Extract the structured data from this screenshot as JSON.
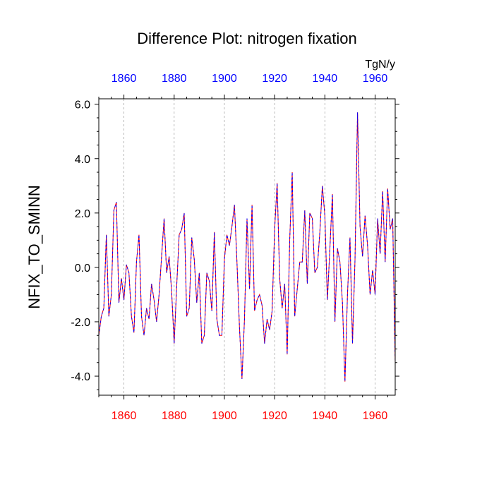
{
  "chart_data": {
    "type": "line",
    "title": "Difference Plot: nitrogen fixation",
    "units_label": "TgN/y",
    "ylabel": "NFIX_TO_SMINN",
    "xlabel": "",
    "xlim": [
      1850,
      1968
    ],
    "ylim": [
      -4.7,
      6.2
    ],
    "grid": "vertical dashed at x ticks",
    "y_ticks": [
      "6.0",
      "4.0",
      "2.0",
      "0.0",
      "-2.0",
      "-4.0"
    ],
    "y_tick_values": [
      6,
      4,
      2,
      0,
      -2,
      -4
    ],
    "x_ticks_top": [
      "1860",
      "1880",
      "1900",
      "1920",
      "1940",
      "1960"
    ],
    "x_ticks_bottom": [
      "1860",
      "1880",
      "1900",
      "1920",
      "1940",
      "1960"
    ],
    "x_tick_values": [
      1860,
      1880,
      1900,
      1920,
      1940,
      1960
    ],
    "colors": {
      "top_ticks": "#0000ff",
      "bottom_ticks": "#ff0000",
      "line_red": "#ff0000",
      "line_blue": "#0000ff",
      "grid": "#aaaaaa"
    },
    "series": [
      {
        "x": [
          1850,
          1851,
          1852,
          1853,
          1854,
          1855,
          1856,
          1857,
          1858,
          1859,
          1860,
          1861,
          1862,
          1863,
          1864,
          1865,
          1866,
          1867,
          1868,
          1869,
          1870,
          1871,
          1872,
          1873,
          1874,
          1875,
          1876,
          1877,
          1878,
          1879,
          1880,
          1881,
          1882,
          1883,
          1884,
          1885,
          1886,
          1887,
          1888,
          1889,
          1890,
          1891,
          1892,
          1893,
          1894,
          1895,
          1896,
          1897,
          1898,
          1899,
          1900,
          1901,
          1902,
          1903,
          1904,
          1905,
          1906,
          1907,
          1908,
          1909,
          1910,
          1911,
          1912,
          1913,
          1914,
          1915,
          1916,
          1917,
          1918,
          1919,
          1920,
          1921,
          1922,
          1923,
          1924,
          1925,
          1926,
          1927,
          1928,
          1929,
          1930,
          1931,
          1932,
          1933,
          1934,
          1935,
          1936,
          1937,
          1938,
          1939,
          1940,
          1941,
          1942,
          1943,
          1944,
          1945,
          1946,
          1947,
          1948,
          1949,
          1950,
          1951,
          1952,
          1953,
          1954,
          1955,
          1956,
          1957,
          1958,
          1959,
          1960,
          1961,
          1962,
          1963,
          1964,
          1965,
          1966,
          1967,
          1968
        ],
        "values": [
          -2.5,
          -1.8,
          -1.5,
          1.2,
          -1.8,
          -1.0,
          2.1,
          2.4,
          -1.3,
          -0.4,
          -1.2,
          0.1,
          -0.2,
          -1.8,
          -2.4,
          0.2,
          1.2,
          -1.8,
          -2.5,
          -1.5,
          -1.9,
          -0.6,
          -1.2,
          -2.0,
          -1.0,
          0.4,
          1.8,
          -0.2,
          0.4,
          -0.9,
          -2.8,
          -0.7,
          1.2,
          1.4,
          2.0,
          -1.8,
          -1.5,
          1.1,
          0.3,
          -1.3,
          -0.2,
          -2.8,
          -2.5,
          -0.2,
          -0.5,
          -1.6,
          1.3,
          -1.9,
          -2.5,
          -2.5,
          0.3,
          1.2,
          0.8,
          1.5,
          2.3,
          0.2,
          -2.2,
          -4.1,
          -1.9,
          1.8,
          -0.8,
          2.3,
          -1.6,
          -1.2,
          -1.0,
          -1.4,
          -2.8,
          -1.9,
          -2.3,
          -1.6,
          1.4,
          3.1,
          -0.4,
          -1.5,
          -0.6,
          -3.2,
          1.0,
          3.5,
          -1.8,
          -0.8,
          0.2,
          0.2,
          2.1,
          -0.6,
          2.0,
          1.8,
          -0.2,
          0.0,
          1.3,
          3.0,
          1.9,
          -1.2,
          0.7,
          2.7,
          -2.0,
          0.7,
          0.2,
          -1.3,
          -4.2,
          -1.0,
          1.1,
          -2.8,
          0.3,
          5.7,
          1.5,
          0.4,
          1.9,
          0.8,
          -1.0,
          -0.1,
          -1.0,
          1.8,
          0.5,
          2.8,
          0.2,
          2.9,
          1.4,
          1.8,
          -3.5
        ]
      }
    ]
  }
}
